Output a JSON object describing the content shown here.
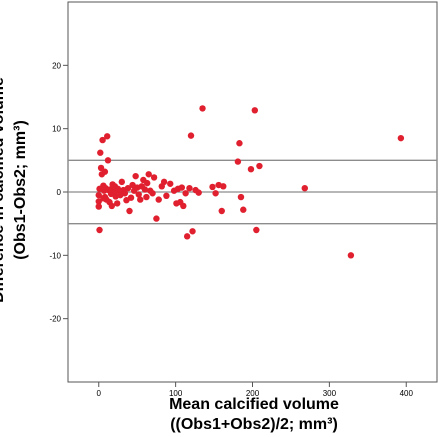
{
  "chart_data": {
    "type": "scatter",
    "xlabel_line1": "Mean calcified volume",
    "xlabel_line2": "((Obs1+Obs2)/2; mm³)",
    "ylabel_line1": "Difference in calcified volume",
    "ylabel_line2": "(Obs1-Obs2; mm³)",
    "xlim": [
      -40,
      440
    ],
    "ylim": [
      -30,
      30
    ],
    "xticks": [
      0,
      100,
      200,
      300,
      400
    ],
    "yticks": [
      20,
      10,
      0,
      -10,
      -20
    ],
    "reference_lines": [
      5,
      0,
      -5
    ],
    "grid": false,
    "point_color": "#e0202f",
    "line_color": "#8c8c8c",
    "points": [
      [
        0,
        -0.5
      ],
      [
        0,
        -1.5
      ],
      [
        0,
        -2.3
      ],
      [
        1,
        0.5
      ],
      [
        1,
        -6
      ],
      [
        2,
        6.2
      ],
      [
        3,
        3.8
      ],
      [
        4,
        2.8
      ],
      [
        5,
        8.2
      ],
      [
        6,
        1
      ],
      [
        6,
        -1
      ],
      [
        7,
        0.2
      ],
      [
        8,
        3.2
      ],
      [
        8,
        -0.8
      ],
      [
        9,
        0.6
      ],
      [
        10,
        -1.2
      ],
      [
        11,
        8.8
      ],
      [
        12,
        5
      ],
      [
        13,
        0.3
      ],
      [
        14,
        -1.6
      ],
      [
        15,
        0.4
      ],
      [
        16,
        -0.3
      ],
      [
        17,
        -2.2
      ],
      [
        18,
        1.2
      ],
      [
        19,
        0.1
      ],
      [
        20,
        -0.2
      ],
      [
        21,
        0.9
      ],
      [
        22,
        -0.7
      ],
      [
        24,
        -1.8
      ],
      [
        25,
        0.5
      ],
      [
        26,
        0.2
      ],
      [
        28,
        -0.5
      ],
      [
        30,
        1.6
      ],
      [
        32,
        0.3
      ],
      [
        34,
        -0.2
      ],
      [
        36,
        -1.3
      ],
      [
        38,
        0.6
      ],
      [
        40,
        -3
      ],
      [
        42,
        -0.9
      ],
      [
        44,
        1.1
      ],
      [
        46,
        0.2
      ],
      [
        48,
        2.5
      ],
      [
        50,
        0.7
      ],
      [
        52,
        -0.4
      ],
      [
        54,
        -1.2
      ],
      [
        56,
        0.9
      ],
      [
        58,
        1.9
      ],
      [
        60,
        0.4
      ],
      [
        62,
        -0.8
      ],
      [
        63,
        1.4
      ],
      [
        65,
        2.8
      ],
      [
        67,
        0.2
      ],
      [
        70,
        -0.2
      ],
      [
        72,
        2.3
      ],
      [
        75,
        -4.2
      ],
      [
        78,
        -1.2
      ],
      [
        82,
        0.9
      ],
      [
        85,
        1.6
      ],
      [
        88,
        -0.6
      ],
      [
        93,
        1.3
      ],
      [
        98,
        0.2
      ],
      [
        101,
        -1.8
      ],
      [
        103,
        0.5
      ],
      [
        106,
        -1.6
      ],
      [
        108,
        0.7
      ],
      [
        110,
        -2.2
      ],
      [
        113,
        -0.2
      ],
      [
        115,
        -7
      ],
      [
        118,
        0.6
      ],
      [
        120,
        8.9
      ],
      [
        122,
        -6.2
      ],
      [
        126,
        0.3
      ],
      [
        130,
        -0.1
      ],
      [
        135,
        13.2
      ],
      [
        148,
        0.8
      ],
      [
        152,
        -0.2
      ],
      [
        156,
        1.1
      ],
      [
        160,
        -3
      ],
      [
        162,
        0.9
      ],
      [
        181,
        4.8
      ],
      [
        183,
        7.7
      ],
      [
        185,
        -0.8
      ],
      [
        188,
        -2.8
      ],
      [
        198,
        3.6
      ],
      [
        203,
        12.9
      ],
      [
        205,
        -6
      ],
      [
        209,
        4.1
      ],
      [
        268,
        0.6
      ],
      [
        328,
        -10
      ],
      [
        393,
        8.5
      ]
    ]
  }
}
